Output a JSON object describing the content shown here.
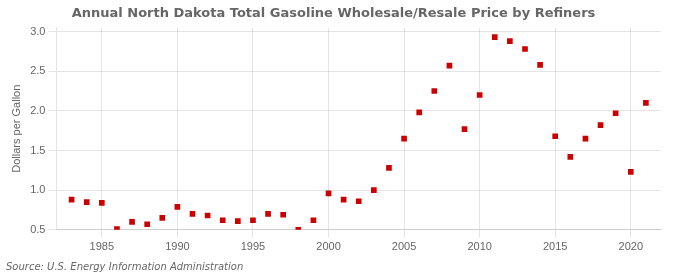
{
  "chart_data": {
    "type": "scatter",
    "title": "Annual North Dakota Total Gasoline Wholesale/Resale Price by Refiners",
    "ylabel": "Dollars per Gallon",
    "annotations": [
      "Source: U.S. Energy Information Administration"
    ],
    "x": [
      1983,
      1984,
      1985,
      1986,
      1987,
      1988,
      1989,
      1990,
      1991,
      1992,
      1993,
      1994,
      1995,
      1996,
      1997,
      1998,
      1999,
      2000,
      2001,
      2002,
      2003,
      2004,
      2005,
      2006,
      2007,
      2008,
      2009,
      2010,
      2011,
      2012,
      2013,
      2014,
      2015,
      2016,
      2017,
      2018,
      2019,
      2020,
      2021
    ],
    "values": [
      0.88,
      0.85,
      0.84,
      0.51,
      0.6,
      0.57,
      0.65,
      0.79,
      0.7,
      0.68,
      0.62,
      0.61,
      0.62,
      0.7,
      0.69,
      0.5,
      0.62,
      0.96,
      0.88,
      0.86,
      1.0,
      1.28,
      1.65,
      1.98,
      2.25,
      2.57,
      1.77,
      2.2,
      2.93,
      2.88,
      2.78,
      2.58,
      1.68,
      1.42,
      1.65,
      1.82,
      1.97,
      1.23,
      2.1
    ],
    "color": "#cc0000",
    "marker": "square",
    "xlim": [
      1982,
      2022
    ],
    "xticks": [
      1985,
      1990,
      1995,
      2000,
      2005,
      2010,
      2015,
      2020
    ],
    "ylim": [
      0.5,
      3.05
    ],
    "yticks": [
      0.5,
      {
        "value": 1.0,
        "label": "1.0"
      },
      1.5,
      {
        "value": 2.0,
        "label": "2.0"
      },
      2.5,
      {
        "value": 3.0,
        "label": "3.0"
      }
    ],
    "grid": true
  }
}
